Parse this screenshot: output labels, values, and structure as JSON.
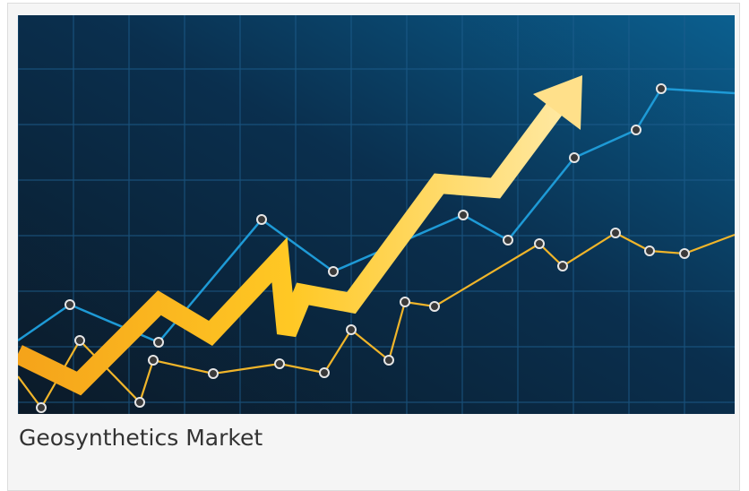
{
  "card": {
    "caption": "Geosynthetics Market"
  }
}
